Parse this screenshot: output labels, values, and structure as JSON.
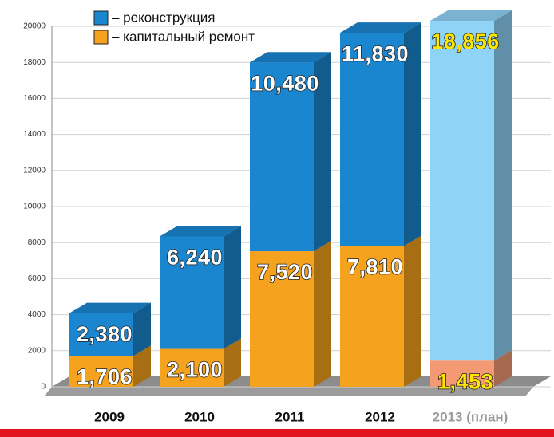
{
  "chart_data": {
    "type": "stacked_bar_3d",
    "categories": [
      "2009",
      "2010",
      "2011",
      "2012",
      "2013 (план)"
    ],
    "category_colors": [
      "#111111",
      "#111111",
      "#111111",
      "#111111",
      "#9a9a9a"
    ],
    "series": [
      {
        "name": "– капитальный ремонт",
        "color": "#f5a21e",
        "colors": [
          "#f5a21e",
          "#f5a21e",
          "#f5a21e",
          "#f5a21e",
          "#f39a74"
        ],
        "label_colors": [
          "#ffffff",
          "#ffffff",
          "#ffffff",
          "#ffffff",
          "#ffe600"
        ],
        "values": [
          1706,
          2100,
          7520,
          7810,
          1453
        ],
        "value_labels": [
          "1,706",
          "2,100",
          "7,520",
          "7,810",
          "1,453"
        ]
      },
      {
        "name": "– реконструкция",
        "color": "#1a86d0",
        "colors": [
          "#1a86d0",
          "#1a86d0",
          "#1a86d0",
          "#1a86d0",
          "#8fd3f7"
        ],
        "label_colors": [
          "#ffffff",
          "#ffffff",
          "#ffffff",
          "#ffffff",
          "#ffe600"
        ],
        "values": [
          2380,
          6240,
          10480,
          11830,
          18856
        ],
        "value_labels": [
          "2,380",
          "6,240",
          "10,480",
          "11,830",
          "18,856"
        ]
      }
    ],
    "ylim": [
      0,
      20000
    ],
    "yticks": [
      0,
      2000,
      4000,
      6000,
      8000,
      10000,
      12000,
      14000,
      16000,
      18000,
      20000
    ],
    "grid": true
  }
}
